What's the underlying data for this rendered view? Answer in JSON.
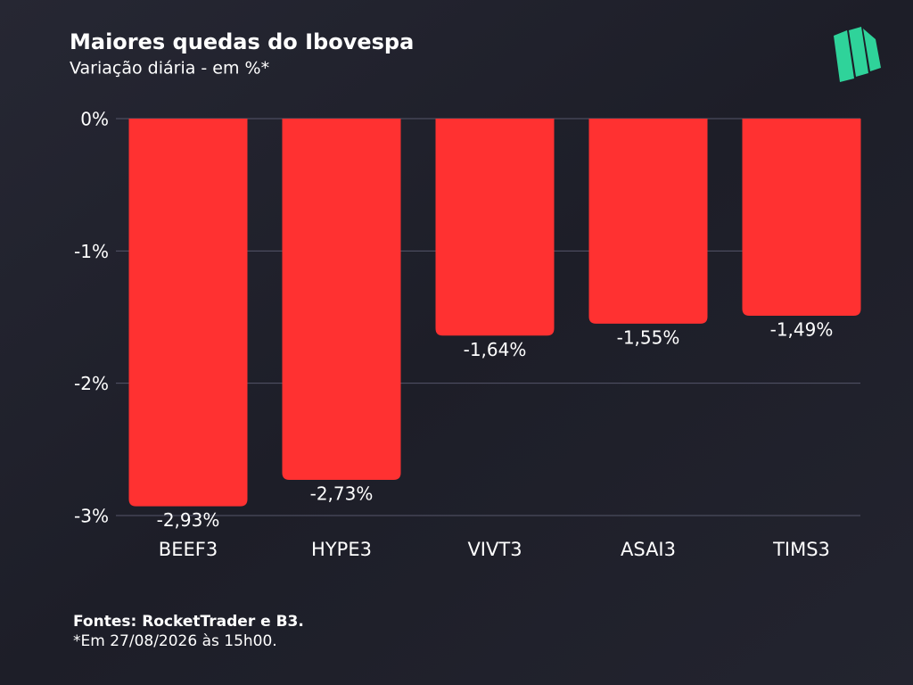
{
  "chart_data": {
    "type": "bar",
    "title": "Maiores quedas do Ibovespa",
    "subtitle": "Variação diária - em %*",
    "categories": [
      "BEEF3",
      "HYPE3",
      "VIVT3",
      "ASAI3",
      "TIMS3"
    ],
    "values": [
      -2.93,
      -2.73,
      -1.64,
      -1.55,
      -1.49
    ],
    "value_labels": [
      "-2,93%",
      "-2,73%",
      "-1,64%",
      "-1,55%",
      "-1,49%"
    ],
    "color": "#ff3131",
    "ylim": [
      -3,
      0
    ],
    "yticks": [
      {
        "value": 0,
        "label": "0%"
      },
      {
        "value": -1,
        "label": "-1%"
      },
      {
        "value": -2,
        "label": "-2%"
      },
      {
        "value": -3,
        "label": "-3%"
      }
    ],
    "grid": true,
    "source": "Fontes: RocketTrader e B3.",
    "note": "*Em 27/08/2026 às 15h00."
  }
}
